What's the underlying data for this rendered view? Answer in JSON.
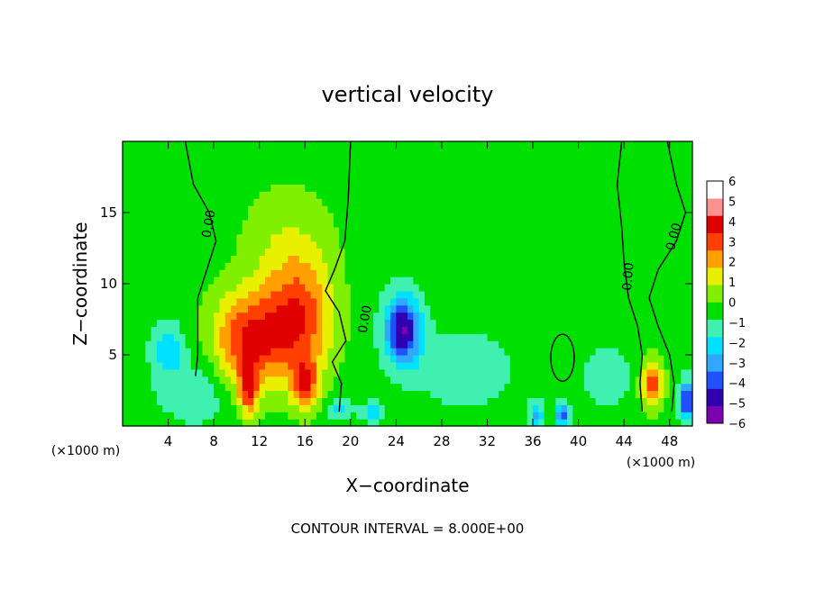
{
  "chart_data": {
    "type": "heatmap",
    "title": "vertical velocity",
    "xlabel": "X−coordinate",
    "ylabel": "Z−coordinate",
    "x_unit_label": "(×1000 m)",
    "footer": "CONTOUR INTERVAL = 8.000E+00",
    "xlim": [
      0,
      50
    ],
    "ylim": [
      0,
      20
    ],
    "x_ticks": [
      4,
      8,
      12,
      16,
      20,
      24,
      28,
      32,
      36,
      40,
      44,
      48
    ],
    "y_ticks": [
      5,
      10,
      15
    ],
    "colorbar": {
      "range": [
        -6,
        6
      ],
      "tick_labels": [
        "6",
        "5",
        "4",
        "3",
        "2",
        "1",
        "0",
        "−1",
        "−2",
        "−3",
        "−4",
        "−5",
        "−6"
      ],
      "colors": [
        "#7a00b0",
        "#3000b0",
        "#2050ff",
        "#30a8ff",
        "#00e0ff",
        "#40f0b0",
        "#00e000",
        "#80f000",
        "#e8f000",
        "#ffa000",
        "#ff4000",
        "#e00000",
        "#ff9090",
        "#ffffff"
      ]
    },
    "background_value": 0,
    "cells": [
      {
        "x": 11.0,
        "z": 6.0,
        "sx": 3.2,
        "sz": 3.5,
        "v": 4.2
      },
      {
        "x": 11.0,
        "z": 2.5,
        "sx": 0.9,
        "sz": 1.8,
        "v": 3.5
      },
      {
        "x": 15.5,
        "z": 7.5,
        "sx": 3.0,
        "sz": 4.0,
        "v": 3.8
      },
      {
        "x": 16.0,
        "z": 3.0,
        "sx": 1.2,
        "sz": 1.8,
        "v": 3.5
      },
      {
        "x": 14.5,
        "z": 13.0,
        "sx": 4.0,
        "sz": 4.0,
        "v": 1.2
      },
      {
        "x": 24.6,
        "z": 6.8,
        "sx": 1.6,
        "sz": 2.4,
        "v": -5.2
      },
      {
        "x": 46.5,
        "z": 3.0,
        "sx": 1.0,
        "sz": 1.6,
        "v": 3.8
      },
      {
        "x": 49.5,
        "z": 1.8,
        "sx": 0.6,
        "sz": 1.4,
        "v": -4.5
      },
      {
        "x": 38.6,
        "z": 0.8,
        "sx": 0.5,
        "sz": 0.8,
        "v": -4.0
      },
      {
        "x": 36.3,
        "z": 0.9,
        "sx": 0.6,
        "sz": 0.9,
        "v": -2.5
      },
      {
        "x": 4.0,
        "z": 5.5,
        "sx": 1.4,
        "sz": 1.8,
        "v": -2.0
      },
      {
        "x": 7.0,
        "z": 2.5,
        "sx": 4.0,
        "sz": 2.5,
        "v": -1.2
      },
      {
        "x": 30.0,
        "z": 4.0,
        "sx": 4.0,
        "sz": 2.5,
        "v": -1.3
      },
      {
        "x": 42.5,
        "z": 3.5,
        "sx": 2.0,
        "sz": 1.8,
        "v": -1.4
      },
      {
        "x": 19.0,
        "z": 1.2,
        "sx": 1.0,
        "sz": 0.8,
        "v": -2.0
      },
      {
        "x": 22.0,
        "z": 1.0,
        "sx": 1.0,
        "sz": 0.7,
        "v": -2.2
      }
    ],
    "contour_label": "0.00"
  }
}
